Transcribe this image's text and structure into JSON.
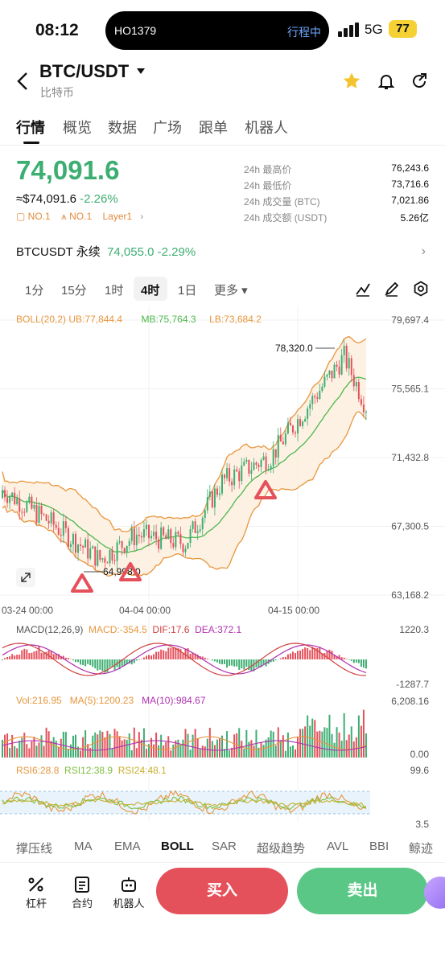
{
  "status_bar": {
    "time": "08:12",
    "flight_code": "HO1379",
    "flight_status": "行程中",
    "network": "5G",
    "battery": "77"
  },
  "header": {
    "pair": "BTC/USDT",
    "subtitle": "比特币"
  },
  "tabs": [
    {
      "label": "行情"
    },
    {
      "label": "概览"
    },
    {
      "label": "数据"
    },
    {
      "label": "广场"
    },
    {
      "label": "跟单"
    },
    {
      "label": "机器人"
    }
  ],
  "ticker": {
    "price": "74,091.6",
    "fiat": "≈$74,091.6",
    "change": "-2.26%",
    "badge1": "NO.1",
    "badge2": "NO.1",
    "badge3": "Layer1",
    "stats": [
      {
        "label": "24h 最高价",
        "value": "76,243.6"
      },
      {
        "label": "24h 最低价",
        "value": "73,716.6"
      },
      {
        "label": "24h 成交量 (BTC)",
        "value": "7,021.86"
      },
      {
        "label": "24h 成交额 (USDT)",
        "value": "5.26亿"
      }
    ]
  },
  "perpetual": {
    "name": "BTCUSDT 永续",
    "price": "74,055.0",
    "change": "-2.29%"
  },
  "periods": [
    {
      "label": "1分"
    },
    {
      "label": "15分"
    },
    {
      "label": "1时"
    },
    {
      "label": "4时"
    },
    {
      "label": "1日"
    },
    {
      "label": "更多"
    }
  ],
  "indicators": {
    "boll": {
      "name": "BOLL(20,2)",
      "ub": "UB:77,844.4",
      "mb": "MB:75,764.3",
      "lb": "LB:73,684.2"
    },
    "macd": {
      "name": "MACD(12,26,9)",
      "macd": "MACD:-354.5",
      "dif": "DIF:17.6",
      "dea": "DEA:372.1"
    },
    "vol": {
      "vol": "Vol:216.95",
      "ma5": "MA(5):1200.23",
      "ma10": "MA(10):984.67"
    },
    "rsi": {
      "rsi6": "RSI6:28.8",
      "rsi12": "RSI12:38.9",
      "rsi24": "RSI24:48.1"
    }
  },
  "colors": {
    "up": "#3dae72",
    "down": "#e5515b",
    "band": "#e8963c"
  },
  "chart_data": {
    "type": "candlestick",
    "price_axis": [
      "79,697.4",
      "75,565.1",
      "71,432.8",
      "67,300.5",
      "63,168.2"
    ],
    "ylim": [
      63168.2,
      79697.4
    ],
    "x_labels": [
      "03-24 00:00",
      "04-04 00:00",
      "04-15 00:00"
    ],
    "high_label": "78,320.0",
    "low_label": "64,998.0",
    "macd_axis": [
      "1220.3",
      "-1287.7"
    ],
    "vol_axis": [
      "6,208.16",
      "0.00"
    ],
    "rsi_axis": [
      "99.6",
      "3.5"
    ]
  },
  "indicator_selector": [
    {
      "label": "撑压线"
    },
    {
      "label": "MA"
    },
    {
      "label": "EMA"
    },
    {
      "label": "BOLL"
    },
    {
      "label": "SAR"
    },
    {
      "label": "超级趋势"
    },
    {
      "label": "AVL"
    },
    {
      "label": "BBI"
    },
    {
      "label": "鲸迹"
    }
  ],
  "bottom_bar": {
    "leverage": "杠杆",
    "contract": "合约",
    "robot": "机器人",
    "buy": "买入",
    "sell": "卖出"
  }
}
